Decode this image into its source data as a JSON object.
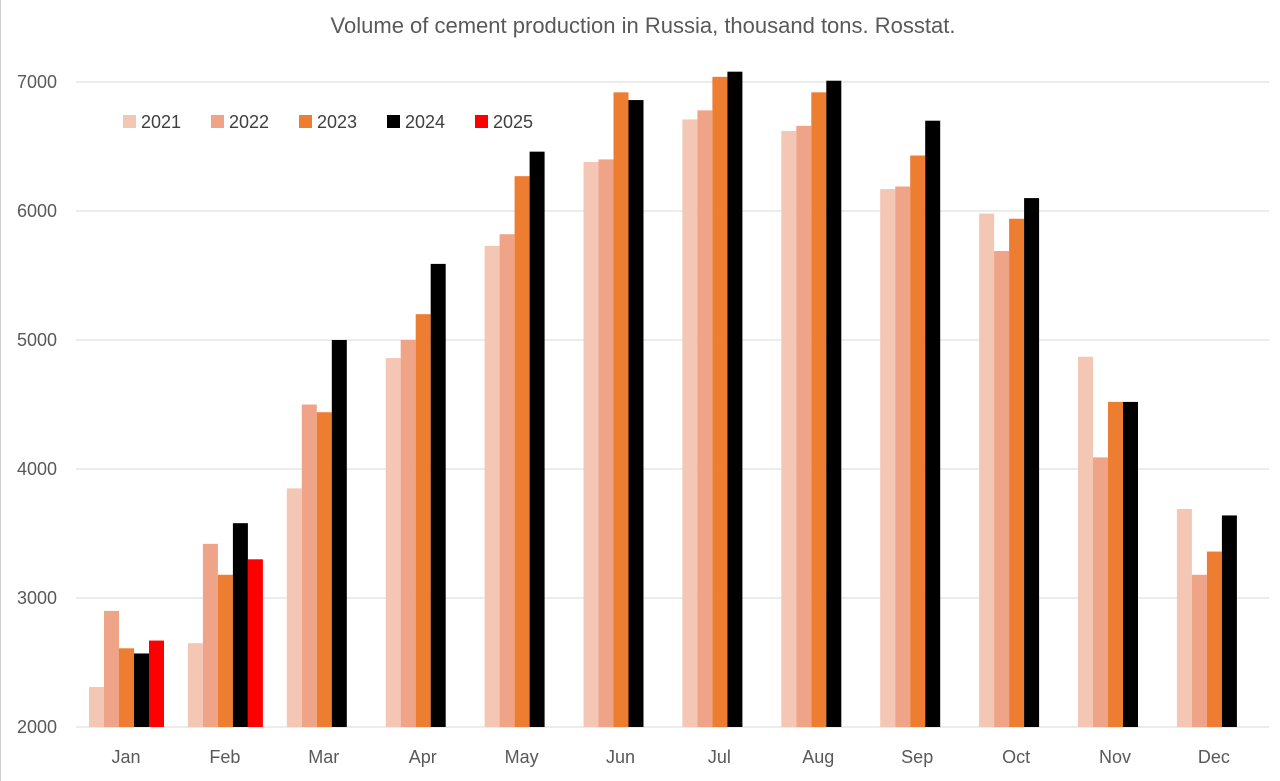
{
  "chart_data": {
    "type": "bar",
    "title": "Volume of cement production in Russia, thousand tons. Rosstat.",
    "xlabel": "",
    "ylabel": "",
    "ylim": [
      2000,
      7000
    ],
    "yticks": [
      "2000",
      "3000",
      "4000",
      "5000",
      "6000",
      "7000"
    ],
    "grid": true,
    "legend_position": "top-left",
    "categories": [
      "Jan",
      "Feb",
      "Mar",
      "Apr",
      "May",
      "Jun",
      "Jul",
      "Aug",
      "Sep",
      "Oct",
      "Nov",
      "Dec"
    ],
    "series": [
      {
        "name": "2021",
        "color": "#f4c7b5",
        "values": [
          2310,
          2650,
          3850,
          4860,
          5730,
          6380,
          6710,
          6620,
          6170,
          5980,
          4870,
          3690
        ]
      },
      {
        "name": "2022",
        "color": "#f0a487",
        "values": [
          2900,
          3420,
          4500,
          5000,
          5820,
          6400,
          6780,
          6660,
          6190,
          5690,
          4090,
          3180
        ]
      },
      {
        "name": "2023",
        "color": "#ed7d31",
        "values": [
          2610,
          3180,
          4440,
          5200,
          6270,
          6920,
          7040,
          6920,
          6430,
          5940,
          4520,
          3360
        ]
      },
      {
        "name": "2024",
        "color": "#000000",
        "values": [
          2570,
          3580,
          5000,
          5590,
          6460,
          6860,
          7080,
          7010,
          6700,
          6100,
          4520,
          3640
        ]
      },
      {
        "name": "2025",
        "color": "#ff0000",
        "values": [
          2670,
          3300,
          null,
          null,
          null,
          null,
          null,
          null,
          null,
          null,
          null,
          null
        ]
      }
    ]
  }
}
